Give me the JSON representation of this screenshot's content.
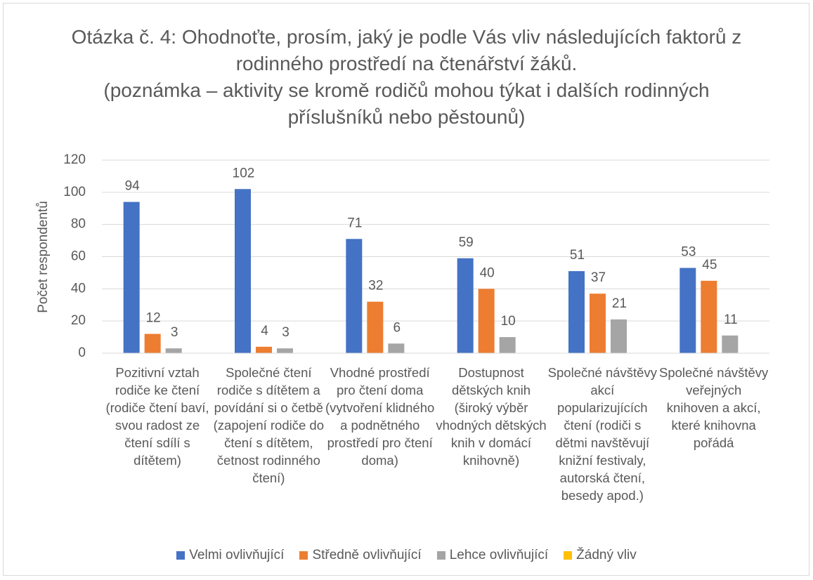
{
  "chart_data": {
    "type": "bar",
    "title": "Otázka č. 4: Ohodnoťte, prosím, jaký je podle Vás vliv následujících faktorů z rodinného prostředí na čtenářství žáků.",
    "subtitle": "(poznámka – aktivity se kromě rodičů mohou týkat i dalších rodinných příslušníků nebo pěstounů)",
    "y_label": "Počet respondentů",
    "categories": [
      "Pozitivní vztah rodiče ke čtení (rodiče čtení baví, svou radost ze čtení sdílí s dítětem)",
      "Společné čtení rodiče s dítětem a povídání si o četbě (zapojení rodiče do čtení s dítětem, četnost rodinného čtení)",
      "Vhodné prostředí pro čtení doma (vytvoření klidného a podnětného prostředí pro čtení doma)",
      "Dostupnost dětských knih (široký výběr vhodných dětských knih v domácí knihovně)",
      "Společné návštěvy akcí popularizujících čtení (rodiči s dětmi navštěvují knižní festivaly, autorská čtení, besedy apod.)",
      "Společné návštěvy veřejných knihoven a akcí, které knihovna pořádá"
    ],
    "series": [
      {
        "name": "Velmi ovlivňující",
        "color": "#4472c4",
        "values": [
          94,
          102,
          71,
          59,
          51,
          53
        ]
      },
      {
        "name": "Středně ovlivňující",
        "color": "#ed7d31",
        "values": [
          12,
          4,
          32,
          40,
          37,
          45
        ]
      },
      {
        "name": "Lehce ovlivňující",
        "color": "#a5a5a5",
        "values": [
          3,
          3,
          6,
          10,
          21,
          11
        ]
      },
      {
        "name": "Žádný vliv",
        "color": "#ffc000",
        "values": [
          null,
          null,
          null,
          null,
          null,
          null
        ]
      }
    ],
    "ylim": [
      0,
      120
    ],
    "yticks": [
      0,
      20,
      40,
      60,
      80,
      100,
      120
    ],
    "grid": true,
    "legend": "bottom"
  }
}
